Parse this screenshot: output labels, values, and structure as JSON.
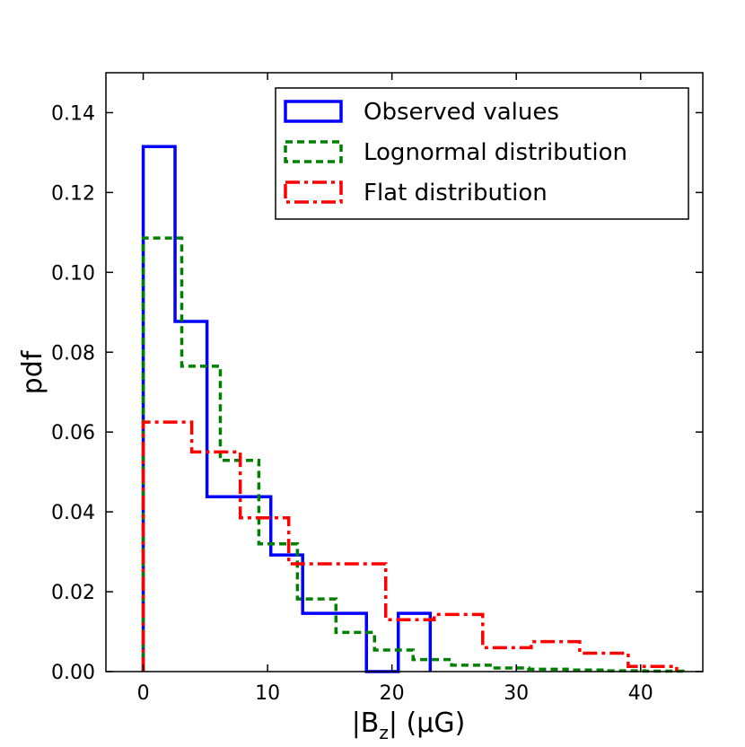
{
  "chart_data": {
    "type": "histogram-step",
    "title": "",
    "xlabel": {
      "prefix": "|B",
      "subscript": "z",
      "suffix": "| (μG)"
    },
    "ylabel": "pdf",
    "xlim": [
      -3,
      45
    ],
    "ylim": [
      0,
      0.15
    ],
    "xticks": [
      0,
      10,
      20,
      30,
      40
    ],
    "xtick_labels": [
      "0",
      "10",
      "20",
      "30",
      "40"
    ],
    "yticks": [
      0.0,
      0.02,
      0.04,
      0.06,
      0.08,
      0.1,
      0.12,
      0.14
    ],
    "ytick_labels": [
      "0.00",
      "0.02",
      "0.04",
      "0.06",
      "0.08",
      "0.10",
      "0.12",
      "0.14"
    ],
    "legend_position": "top-right",
    "series": [
      {
        "name": "Observed values",
        "color": "#0000ff",
        "style": "solid",
        "bin_edges": [
          0.0,
          2.56,
          5.13,
          7.69,
          10.26,
          12.82,
          15.38,
          17.95,
          20.51,
          23.08
        ],
        "values": [
          0.1315,
          0.0877,
          0.0438,
          0.0438,
          0.0292,
          0.0146,
          0.0146,
          0.0,
          0.0146
        ]
      },
      {
        "name": "Lognormal distribution",
        "color": "#008000",
        "style": "dashed",
        "bin_edges": [
          0.0,
          3.1,
          6.2,
          9.3,
          12.4,
          15.5,
          18.6,
          21.7,
          24.8,
          27.9,
          31.0,
          34.1,
          37.2,
          40.3,
          43.4
        ],
        "values": [
          0.1086,
          0.0765,
          0.0529,
          0.032,
          0.0182,
          0.0098,
          0.0054,
          0.003,
          0.0016,
          0.0009,
          0.0006,
          0.0004,
          0.0002,
          0.0001
        ]
      },
      {
        "name": "Flat distribution",
        "color": "#ff0000",
        "style": "dashdot",
        "bin_edges": [
          0.0,
          3.9,
          7.8,
          11.7,
          15.6,
          19.5,
          23.4,
          27.3,
          31.2,
          35.1,
          39.0,
          42.9
        ],
        "values": [
          0.0625,
          0.055,
          0.0385,
          0.027,
          0.027,
          0.013,
          0.0143,
          0.006,
          0.0075,
          0.0046,
          0.0013
        ]
      }
    ]
  }
}
